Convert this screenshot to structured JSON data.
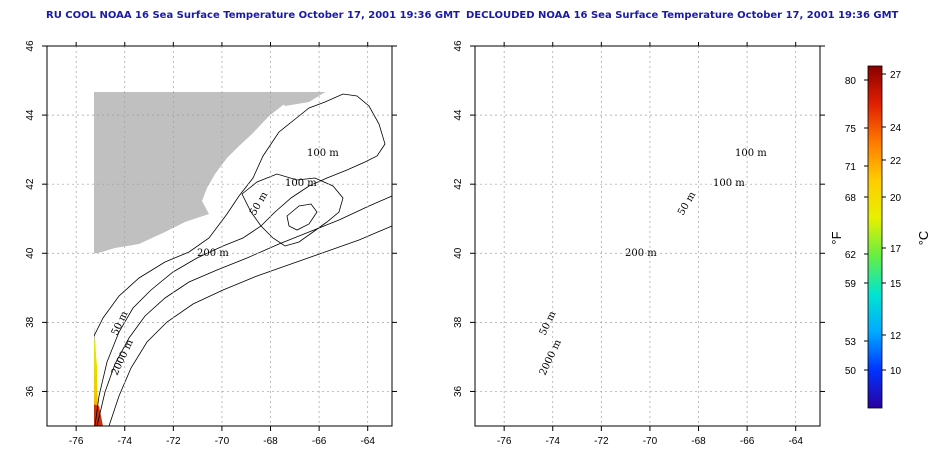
{
  "panels": [
    {
      "id": "left",
      "title": "RU COOL NOAA 16 Sea Surface Temperature October 17, 2001 19:36 GMT",
      "contour_labels": [
        "100 m",
        "100 m",
        "50 m",
        "200 m",
        "50 m",
        "2000 m"
      ]
    },
    {
      "id": "right",
      "title": "DECLOUDED NOAA 16 Sea Surface Temperature October 17, 2001 19:36 GMT",
      "contour_labels": [
        "100 m",
        "100 m",
        "50 m",
        "200 m",
        "50 m",
        "2000 m"
      ]
    }
  ],
  "axes": {
    "lon_ticks": [
      "-76",
      "-74",
      "-72",
      "-70",
      "-68",
      "-66",
      "-64"
    ],
    "lat_ticks": [
      "36",
      "38",
      "40",
      "42",
      "44",
      "46"
    ],
    "lon_range": [
      -77.2,
      -63
    ],
    "lat_range": [
      35,
      46
    ]
  },
  "colorbar": {
    "fahrenheit_label": "°F",
    "celsius_label": "°C",
    "fahrenheit_ticks": [
      "80",
      "75",
      "71",
      "68",
      "62",
      "59",
      "53",
      "50"
    ],
    "celsius_ticks": [
      "27",
      "24",
      "22",
      "20",
      "17",
      "15",
      "12",
      "10"
    ],
    "stops": [
      "#2a00a0",
      "#0033ff",
      "#00aaff",
      "#00e5d0",
      "#66ee44",
      "#e8f000",
      "#ffcc00",
      "#ff7a00",
      "#e02000",
      "#8a0000"
    ]
  },
  "colors": {
    "land": "#c0c0c0",
    "contour": "#000000",
    "grid": "#a0a0a0"
  }
}
